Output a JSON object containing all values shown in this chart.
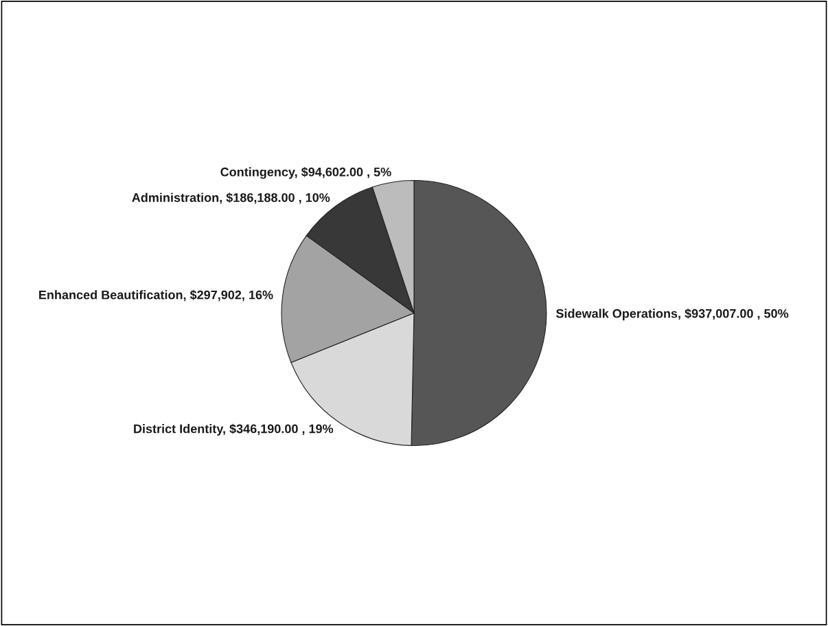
{
  "chart_data": {
    "type": "pie",
    "categories": [
      "Sidewalk Operations",
      "District Identity",
      "Enhanced Beautification",
      "Administration",
      "Contingency"
    ],
    "values": [
      937007,
      346190,
      297902,
      186188,
      94602
    ],
    "colors": [
      "#565656",
      "#d9d9d9",
      "#a3a3a3",
      "#383838",
      "#bcbcbc"
    ],
    "value_labels": [
      "$937,007.00 , 50%",
      "$346,190.00 , 19%",
      "$297,902, 16%",
      "$186,188.00 , 10%",
      "$94,602.00 , 5%"
    ],
    "legend": false
  }
}
